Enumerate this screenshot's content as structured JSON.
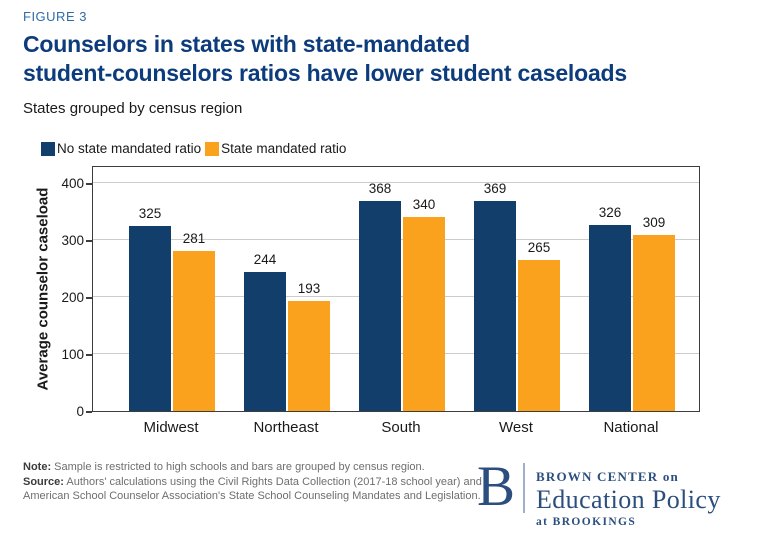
{
  "figure_label": "FIGURE 3",
  "title_lines": [
    "Counselors in states with state-mandated",
    "student-counselors ratios have lower student caseloads"
  ],
  "subtitle": "States grouped by census region",
  "chart_data": {
    "type": "bar",
    "title": "Counselors in states with state-mandated student-counselors ratios have lower student caseloads",
    "categories": [
      "Midwest",
      "Northeast",
      "South",
      "West",
      "National"
    ],
    "series": [
      {
        "name": "No state mandated ratio",
        "color": "#123E6B",
        "values": [
          325,
          244,
          368,
          369,
          326
        ]
      },
      {
        "name": "State mandated ratio",
        "color": "#FAA21D",
        "values": [
          281,
          193,
          340,
          265,
          309
        ]
      }
    ],
    "xlabel": "",
    "ylabel": "Average counselor caseload",
    "yticks": [
      0,
      100,
      200,
      300,
      400
    ],
    "ylim": [
      0,
      432
    ],
    "grid": "horizontal",
    "legend_position": "top-left",
    "bar_labels": true
  },
  "note": {
    "note_label": "Note:",
    "note_text": " Sample is restricted to high schools and bars are grouped by census region.",
    "source_label": "Source:",
    "source_text": " Authors' calculations using the Civil Rights Data Collection (2017-18 school year) and American School Counselor Association's State School Counseling Mandates and Legislation."
  },
  "logo": {
    "initial": "B",
    "line1": "BROWN CENTER on",
    "line2": "Education Policy",
    "line3": "at BROOKINGS"
  },
  "colors": {
    "title": "#0D3C7C",
    "figure_label": "#2E6CA8",
    "bar_navy": "#123E6B",
    "bar_orange": "#FAA21D",
    "logo_blue": "#2B4E7E",
    "gridline": "#CCCCCC",
    "axis_border": "#3D3D3D"
  }
}
